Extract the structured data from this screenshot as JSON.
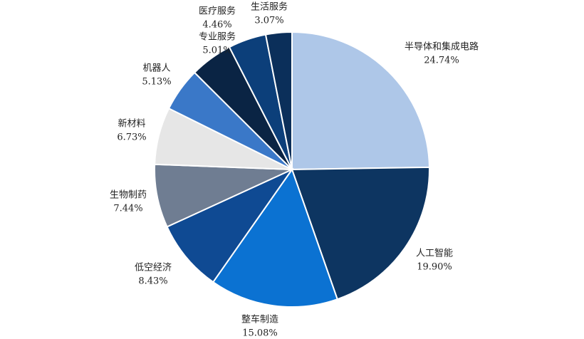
{
  "chart_data": {
    "type": "pie",
    "categories": [
      "半导体和集成电路",
      "人工智能",
      "整车制造",
      "低空经济",
      "生物制药",
      "新材料",
      "机器人",
      "专业服务",
      "医疗服务",
      "生活服务"
    ],
    "values": [
      24.74,
      19.9,
      15.08,
      8.43,
      7.44,
      6.73,
      5.13,
      5.01,
      4.46,
      3.07
    ],
    "value_labels": [
      "24.74%",
      "19.90%",
      "15.08%",
      "8.43%",
      "7.44%",
      "6.73%",
      "5.13%",
      "5.01%",
      "4.46%",
      "3.07%"
    ],
    "colors": [
      "#aec7e8",
      "#0d3561",
      "#0b72d2",
      "#0f4a93",
      "#6f7d92",
      "#e6e6e6",
      "#3a78c8",
      "#0a2444",
      "#0c3f7a",
      "#0b2f5a"
    ]
  }
}
